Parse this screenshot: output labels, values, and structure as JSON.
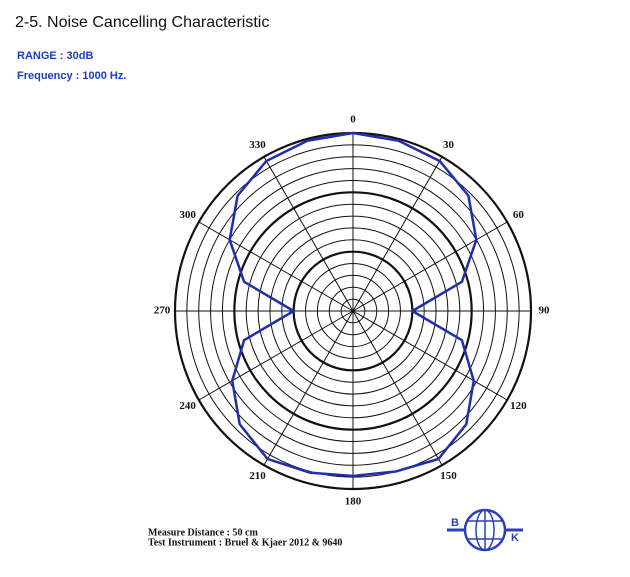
{
  "title": "2-5. Noise Cancelling Characteristic",
  "range": "RANGE : 30dB",
  "frequency": "Frequency : 1000 Hz.",
  "chart_data": {
    "type": "polar",
    "theta_ticks": [
      0,
      30,
      60,
      90,
      120,
      150,
      180,
      210,
      240,
      270,
      300,
      330
    ],
    "rlim": [
      -30,
      0
    ],
    "rticks": [
      -28,
      -26,
      -24,
      -22,
      -20,
      -18,
      -16,
      -14,
      -12,
      -10,
      -8,
      -6,
      -4,
      -2,
      0
    ],
    "rticks_major": [
      -20,
      -10,
      0
    ],
    "direction": "clockwise",
    "zero_location": "top",
    "grid": true,
    "series": [
      {
        "color": "#1f2fa8",
        "theta": [
          0,
          15,
          30,
          45,
          60,
          75,
          90,
          105,
          120,
          135,
          150,
          165,
          180,
          195,
          210,
          225,
          240,
          255,
          270,
          285,
          300,
          315,
          330,
          345
        ],
        "values": [
          0,
          -0.3,
          -0.8,
          -2.5,
          -6,
          -11,
          -20,
          -11,
          -6.5,
          -3,
          -1.2,
          -2,
          -2.2,
          -1.8,
          -1.2,
          -3,
          -6.5,
          -11,
          -20,
          -11,
          -6,
          -2.5,
          -0.8,
          -0.3
        ]
      }
    ],
    "notes": [
      "Measure Distance : 50 cm",
      "Test Instrument : Bruel & Kjaer 2012 & 9640"
    ]
  },
  "logo": {
    "left": "B",
    "right": "K"
  }
}
